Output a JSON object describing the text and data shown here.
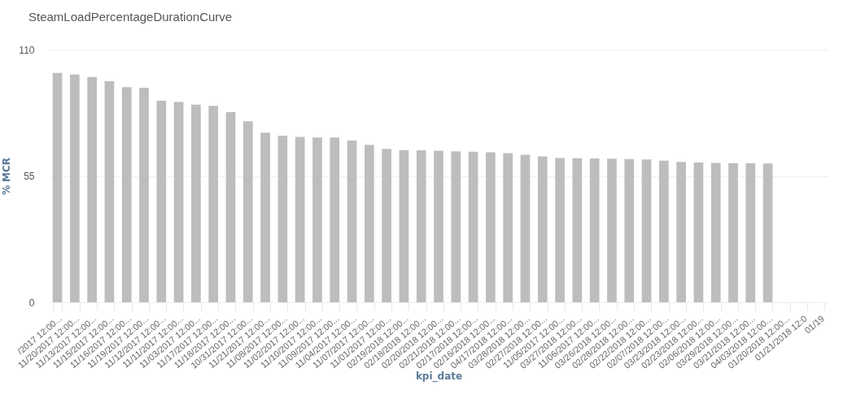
{
  "chart_data": {
    "type": "bar",
    "title": "SteamLoadPercentageDurationCurve",
    "xlabel": "kpi_date",
    "ylabel": "% MCR",
    "categories": [
      "/2017 12:00...",
      "11/20/2017 12:00...",
      "11/13/2017 12:00...",
      "11/15/2017 12:00...",
      "11/16/2017 12:00...",
      "11/19/2017 12:00...",
      "11/12/2017 12:00...",
      "11/11/2017 12:00...",
      "11/03/2017 12:00...",
      "11/17/2017 12:00...",
      "11/18/2017 12:00...",
      "10/31/2017 12:00...",
      "11/21/2017 12:00...",
      "11/08/2017 12:00...",
      "11/02/2017 12:00...",
      "11/10/2017 12:00...",
      "11/09/2017 12:00...",
      "11/04/2017 12:00...",
      "11/07/2017 12:00...",
      "11/01/2017 12:00...",
      "02/19/2018 12:00...",
      "02/18/2018 12:00...",
      "02/20/2018 12:00...",
      "02/21/2018 12:00...",
      "02/17/2018 12:00...",
      "02/16/2018 12:00...",
      "04/17/2018 12:00...",
      "03/28/2018 12:00...",
      "02/27/2018 12:00...",
      "11/05/2017 12:00...",
      "03/27/2018 12:00...",
      "11/06/2017 12:00...",
      "03/26/2018 12:00...",
      "02/28/2018 12:00...",
      "02/22/2018 12:00...",
      "02/07/2018 12:00...",
      "03/23/2018 12:00...",
      "02/23/2018 12:00...",
      "02/06/2018 12:00...",
      "03/29/2018 12:00...",
      "03/21/2018 12:00...",
      "04/03/2018 12:00...",
      "01/20/2018 12:00...",
      "01/21/2018 12:0",
      "01/19"
    ],
    "values": [
      99.8,
      99.1,
      98.1,
      96.2,
      93.6,
      93.4,
      87.7,
      87.2,
      86.0,
      85.5,
      82.8,
      78.8,
      73.8,
      72.5,
      72.0,
      71.7,
      71.7,
      70.4,
      68.5,
      66.8,
      66.2,
      66.1,
      66.0,
      65.7,
      65.5,
      65.3,
      64.9,
      64.2,
      63.5,
      62.8,
      62.7,
      62.6,
      62.5,
      62.3,
      62.2,
      61.6,
      61.1,
      60.8,
      60.7,
      60.6,
      60.5,
      60.4,
      null,
      null,
      null
    ],
    "color": "#bdbdbd",
    "ylim": [
      0,
      110
    ],
    "yticks": [
      0,
      55,
      110
    ],
    "grid": "y"
  }
}
